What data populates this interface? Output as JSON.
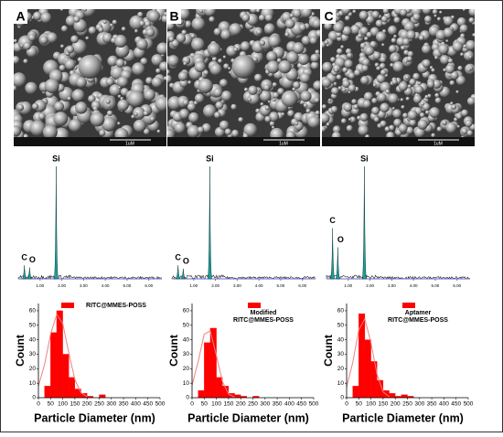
{
  "panels": [
    {
      "label": "A",
      "scale_bar": "1uM"
    },
    {
      "label": "B",
      "scale_bar": "1uM"
    },
    {
      "label": "C",
      "scale_bar": "1uM"
    }
  ],
  "chart_data": [
    {
      "type": "spectrum",
      "color": "#1f9e9a",
      "xlim": [
        0,
        6.6
      ],
      "ylim": [
        0,
        100
      ],
      "xticks": [
        {
          "value": 1,
          "label": "1.00"
        },
        {
          "value": 2,
          "label": "2.00"
        },
        {
          "value": 3,
          "label": "3.00"
        },
        {
          "value": 4,
          "label": "4.00"
        },
        {
          "value": 5,
          "label": "5.00"
        },
        {
          "value": 6,
          "label": "6.00"
        }
      ],
      "peaks": [
        {
          "label": "C",
          "x": 0.28,
          "height": 12
        },
        {
          "label": "O",
          "x": 0.52,
          "height": 10
        },
        {
          "label": "Si",
          "x": 1.74,
          "height": 100
        }
      ]
    },
    {
      "type": "spectrum",
      "color": "#1f9e9a",
      "xlim": [
        0,
        6.6
      ],
      "ylim": [
        0,
        100
      ],
      "xticks": [
        {
          "value": 1,
          "label": "1.00"
        },
        {
          "value": 2,
          "label": "2.00"
        },
        {
          "value": 3,
          "label": "3.00"
        },
        {
          "value": 4,
          "label": "4.00"
        },
        {
          "value": 5,
          "label": "5.00"
        },
        {
          "value": 6,
          "label": "6.00"
        }
      ],
      "peaks": [
        {
          "label": "C",
          "x": 0.28,
          "height": 12
        },
        {
          "label": "O",
          "x": 0.52,
          "height": 9
        },
        {
          "label": "Si",
          "x": 1.74,
          "height": 100
        }
      ]
    },
    {
      "type": "spectrum",
      "color": "#1f9e9a",
      "xlim": [
        0,
        6.6
      ],
      "ylim": [
        0,
        100
      ],
      "xticks": [
        {
          "value": 1,
          "label": "1.00"
        },
        {
          "value": 2,
          "label": "2.00"
        },
        {
          "value": 3,
          "label": "3.00"
        },
        {
          "value": 4,
          "label": "4.00"
        },
        {
          "value": 5,
          "label": "5.00"
        },
        {
          "value": 6,
          "label": "6.00"
        }
      ],
      "peaks": [
        {
          "label": "C",
          "x": 0.28,
          "height": 45
        },
        {
          "label": "O",
          "x": 0.52,
          "height": 28
        },
        {
          "label": "Si",
          "x": 1.74,
          "height": 100
        }
      ]
    },
    {
      "type": "histogram",
      "name": "RITC@MMES-POSS",
      "color": "#ff0000",
      "x_label": "Particle Diameter (nm)",
      "y_label": "Count",
      "xlim": [
        0,
        500
      ],
      "xticks": [
        0,
        50,
        100,
        150,
        200,
        250,
        300,
        350,
        400,
        450,
        500
      ],
      "ylim": [
        0,
        65
      ],
      "yticks": [
        0,
        10,
        20,
        30,
        40,
        50,
        60
      ],
      "bins": [
        25,
        50,
        75,
        100,
        125,
        150,
        175,
        200,
        225,
        250,
        275
      ],
      "counts": [
        8,
        45,
        60,
        30,
        14,
        6,
        3,
        1,
        0,
        2
      ],
      "fit": {
        "color": "#f08080",
        "x": [
          0,
          25,
          50,
          75,
          100,
          125,
          150,
          175,
          200
        ],
        "y": [
          7.9,
          22.5,
          43.8,
          57.5,
          51.2,
          30.8,
          12.5,
          3.5,
          0.6
        ]
      }
    },
    {
      "type": "histogram",
      "name": "Modified\nRITC@MMES-POSS",
      "color": "#ff0000",
      "x_label": "Particle Diameter (nm)",
      "y_label": "Count",
      "xlim": [
        0,
        500
      ],
      "xticks": [
        0,
        50,
        100,
        150,
        200,
        250,
        300,
        350,
        400,
        450,
        500
      ],
      "ylim": [
        0,
        65
      ],
      "yticks": [
        0,
        10,
        20,
        30,
        40,
        50,
        60
      ],
      "bins": [
        25,
        50,
        75,
        100,
        125,
        150,
        175,
        200,
        225,
        250,
        275
      ],
      "counts": [
        5,
        38,
        48,
        14,
        8,
        3,
        2,
        1,
        0,
        1
      ],
      "fit": {
        "color": "#f08080",
        "x": [
          0,
          25,
          50,
          75,
          100,
          125,
          150,
          175
        ],
        "y": [
          8.6,
          25,
          43.8,
          46.1,
          29.1,
          11,
          2.5,
          0.3
        ]
      }
    },
    {
      "type": "histogram",
      "name": "Aptamer\nRITC@MMES-POSS",
      "color": "#ff0000",
      "x_label": "Particle Diameter (nm)",
      "y_label": "Count",
      "xlim": [
        0,
        500
      ],
      "xticks": [
        0,
        50,
        100,
        150,
        200,
        250,
        300,
        350,
        400,
        450,
        500
      ],
      "ylim": [
        0,
        65
      ],
      "yticks": [
        0,
        10,
        20,
        30,
        40,
        50,
        60
      ],
      "bins": [
        25,
        50,
        75,
        100,
        125,
        150,
        175,
        200,
        225,
        250,
        275
      ],
      "counts": [
        8,
        58,
        40,
        25,
        12,
        5,
        3,
        1,
        2,
        1
      ],
      "fit": {
        "color": "#f08080",
        "x": [
          0,
          25,
          50,
          75,
          100,
          125,
          150,
          175
        ],
        "y": [
          7.4,
          24,
          46.7,
          54.4,
          38.1,
          16,
          4,
          0.6
        ]
      }
    }
  ]
}
